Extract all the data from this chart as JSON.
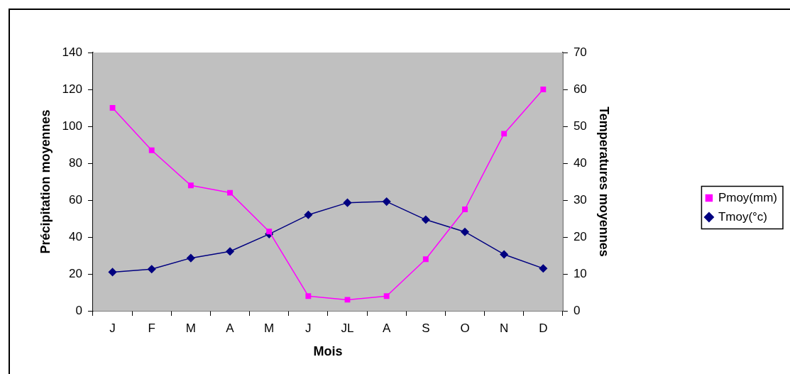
{
  "chart_data": {
    "type": "line",
    "xlabel": "Mois",
    "ylabel": "Précipitation moyennes",
    "y2label": "Temperatures moyennes",
    "categories": [
      "J",
      "F",
      "M",
      "A",
      "M",
      "J",
      "JL",
      "A",
      "S",
      "O",
      "N",
      "D"
    ],
    "series": [
      {
        "name": "Pmoy(mm)",
        "color": "#ff00ff",
        "marker": "square",
        "values": [
          110,
          87,
          68,
          64,
          43,
          8,
          6,
          8,
          28,
          55,
          96,
          120
        ]
      },
      {
        "name": "Tmoy(°c)",
        "color": "#000080",
        "marker": "diamond",
        "axis": "y2",
        "values": [
          10.5,
          11.3,
          14.3,
          16.1,
          20.8,
          26,
          29.3,
          29.6,
          24.7,
          21.4,
          15.3,
          11.5
        ]
      }
    ],
    "ylim": [
      0,
      140
    ],
    "yticks": [
      0,
      20,
      40,
      60,
      80,
      100,
      120,
      140
    ],
    "y2lim": [
      0,
      70
    ],
    "y2ticks": [
      0,
      10,
      20,
      30,
      40,
      50,
      60,
      70
    ],
    "grid": false,
    "legend": "right",
    "line_style": "solid"
  }
}
